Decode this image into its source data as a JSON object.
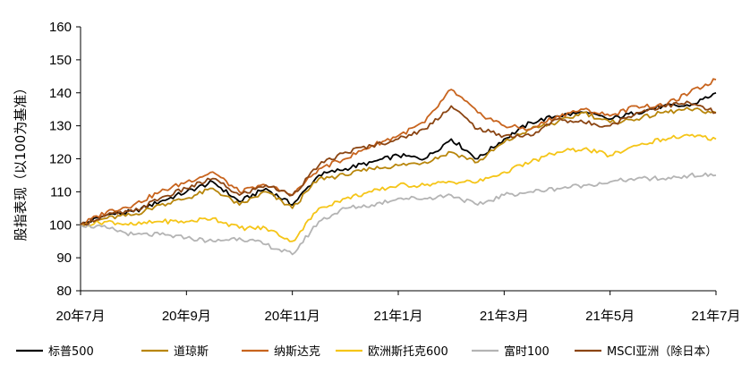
{
  "chart_data": {
    "type": "line",
    "title": "",
    "ylabel": "股指表现（以100为基准）",
    "xlabel": "",
    "ylim": [
      80,
      160
    ],
    "yticks": [
      80,
      90,
      100,
      110,
      120,
      130,
      140,
      150,
      160
    ],
    "x_labels": [
      "20年7月",
      "20年9月",
      "20年11月",
      "21年1月",
      "21年3月",
      "21年5月",
      "21年7月"
    ],
    "x": [
      0,
      0.5,
      1,
      1.5,
      2,
      2.5,
      3,
      3.5,
      4,
      4.5,
      5,
      5.5,
      6,
      6.5,
      7,
      7.5,
      8,
      8.5,
      9,
      9.5,
      10,
      10.5,
      11,
      11.5,
      12
    ],
    "grid": false,
    "legend_position": "bottom",
    "series": [
      {
        "name": "标普500",
        "color": "#000000",
        "values": [
          100,
          103,
          104,
          107,
          110,
          113,
          107,
          111,
          106,
          115,
          117,
          119,
          121,
          120,
          126,
          120,
          126,
          131,
          133,
          134,
          132,
          134,
          136,
          136,
          140
        ]
      },
      {
        "name": "道琼斯",
        "color": "#B8860B",
        "values": [
          100,
          102,
          103,
          106,
          108,
          111,
          106,
          110,
          105,
          114,
          115,
          117,
          118,
          119,
          122,
          119,
          125,
          129,
          131,
          134,
          131,
          132,
          134,
          135,
          134
        ]
      },
      {
        "name": "纳斯达克",
        "color": "#C8641E",
        "values": [
          100,
          104,
          106,
          110,
          113,
          116,
          110,
          112,
          109,
          117,
          120,
          124,
          127,
          131,
          141,
          134,
          130,
          129,
          133,
          135,
          133,
          136,
          136,
          140,
          144
        ]
      },
      {
        "name": "欧洲斯托克600",
        "color": "#F5C518",
        "values": [
          100,
          101,
          100,
          101,
          101,
          102,
          99,
          99,
          95,
          105,
          108,
          110,
          112,
          112,
          113,
          113,
          116,
          119,
          122,
          123,
          121,
          124,
          126,
          127,
          126
        ]
      },
      {
        "name": "富时100",
        "color": "#B4B4B4",
        "values": [
          100,
          99,
          97,
          97,
          96,
          95,
          96,
          94,
          91,
          101,
          105,
          106,
          108,
          108,
          109,
          106,
          109,
          110,
          111,
          112,
          113,
          114,
          114,
          115,
          115
        ]
      },
      {
        "name": "MSCI亚洲（除日本）",
        "color": "#8B4513",
        "values": [
          100,
          103,
          104,
          108,
          111,
          114,
          109,
          112,
          109,
          118,
          122,
          124,
          126,
          129,
          136,
          129,
          127,
          127,
          132,
          131,
          130,
          134,
          136,
          137,
          134
        ]
      }
    ]
  }
}
